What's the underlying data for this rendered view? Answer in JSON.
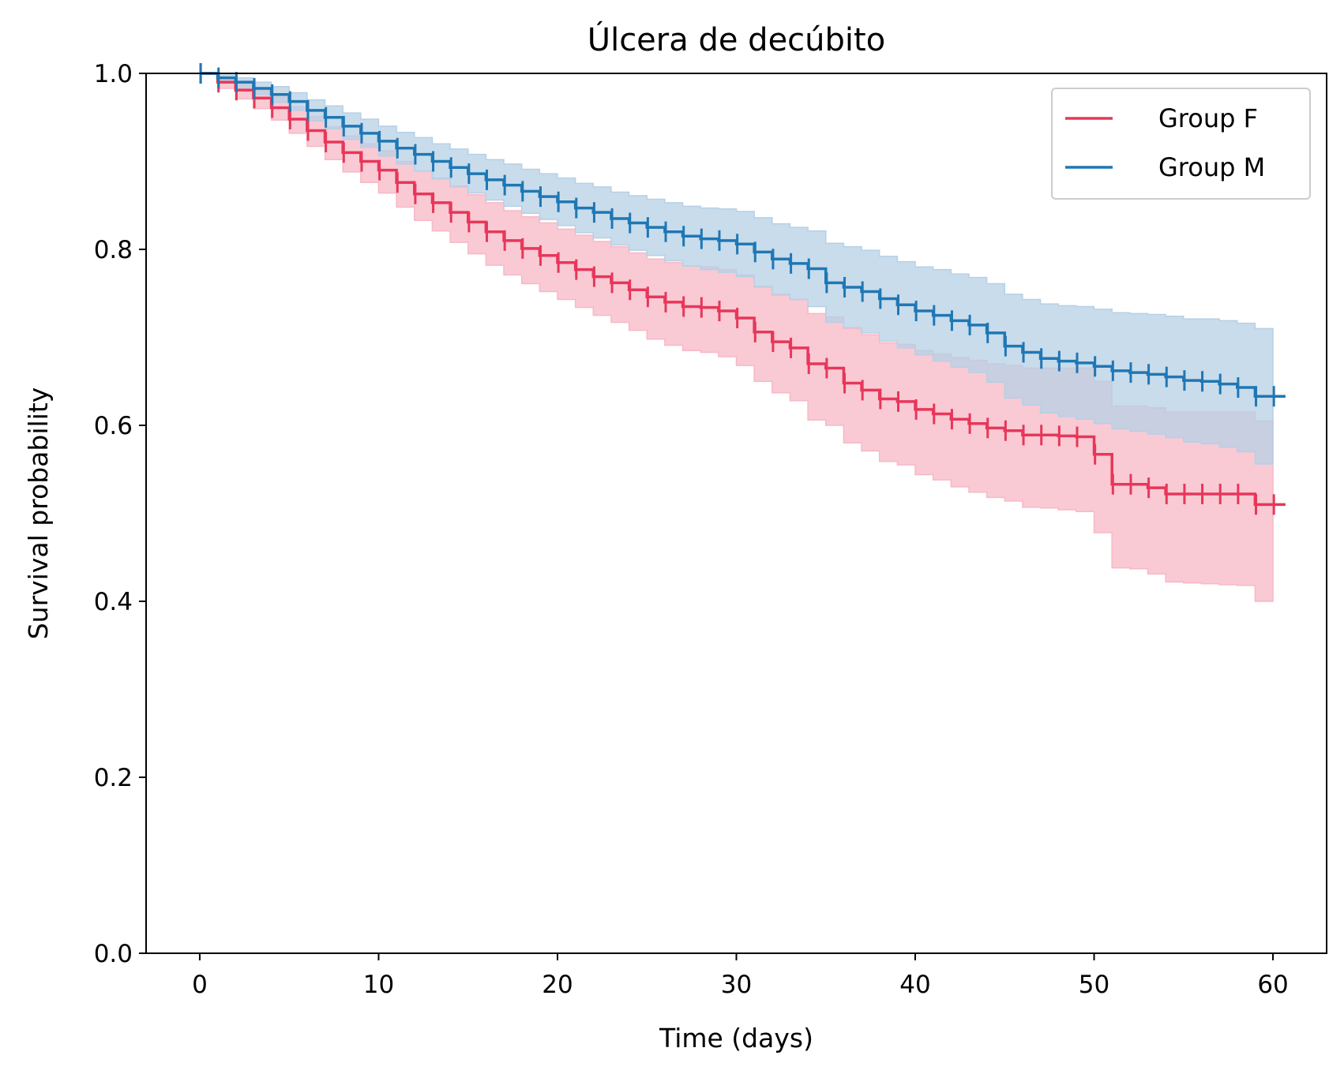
{
  "chart_data": {
    "type": "line",
    "subtype": "kaplan-meier-step",
    "title": "Úlcera de decúbito",
    "xlabel": "Time (days)",
    "ylabel": "Survival probability",
    "xlim": [
      -3,
      63
    ],
    "ylim": [
      0,
      1
    ],
    "xticks": [
      0,
      10,
      20,
      30,
      40,
      50,
      60
    ],
    "yticks": [
      0.0,
      0.2,
      0.4,
      0.6,
      0.8,
      1.0
    ],
    "xtick_labels": [
      "0",
      "10",
      "20",
      "30",
      "40",
      "50",
      "60"
    ],
    "ytick_labels": [
      "0.0",
      "0.2",
      "0.4",
      "0.6",
      "0.8",
      "1.0"
    ],
    "grid": false,
    "legend_position": "upper right",
    "series": [
      {
        "name": "Group F",
        "color": "#e8365a",
        "ci_fill": "#f7b8c6",
        "x": [
          0,
          1,
          2,
          3,
          4,
          5,
          6,
          7,
          8,
          9,
          10,
          11,
          12,
          13,
          14,
          15,
          16,
          17,
          18,
          19,
          20,
          21,
          22,
          23,
          24,
          25,
          26,
          27,
          28,
          29,
          30,
          31,
          32,
          33,
          34,
          35,
          36,
          37,
          38,
          39,
          40,
          41,
          42,
          43,
          44,
          45,
          46,
          47,
          48,
          49,
          50,
          51,
          52,
          53,
          54,
          55,
          56,
          57,
          58,
          59,
          60
        ],
        "y": [
          1.0,
          0.99,
          0.981,
          0.972,
          0.961,
          0.948,
          0.935,
          0.922,
          0.91,
          0.9,
          0.89,
          0.876,
          0.863,
          0.853,
          0.842,
          0.831,
          0.82,
          0.81,
          0.801,
          0.793,
          0.785,
          0.777,
          0.769,
          0.762,
          0.754,
          0.746,
          0.74,
          0.735,
          0.734,
          0.73,
          0.722,
          0.706,
          0.695,
          0.688,
          0.67,
          0.665,
          0.648,
          0.64,
          0.63,
          0.627,
          0.618,
          0.613,
          0.607,
          0.602,
          0.597,
          0.594,
          0.589,
          0.589,
          0.588,
          0.587,
          0.567,
          0.533,
          0.533,
          0.529,
          0.522,
          0.522,
          0.522,
          0.522,
          0.522,
          0.51,
          0.51
        ],
        "ci_lower": [
          1.0,
          0.983,
          0.971,
          0.96,
          0.947,
          0.932,
          0.917,
          0.902,
          0.888,
          0.876,
          0.864,
          0.848,
          0.833,
          0.821,
          0.808,
          0.795,
          0.782,
          0.771,
          0.761,
          0.752,
          0.743,
          0.734,
          0.725,
          0.717,
          0.708,
          0.698,
          0.691,
          0.685,
          0.683,
          0.678,
          0.668,
          0.65,
          0.637,
          0.628,
          0.606,
          0.6,
          0.58,
          0.571,
          0.559,
          0.555,
          0.544,
          0.538,
          0.53,
          0.524,
          0.518,
          0.514,
          0.507,
          0.506,
          0.504,
          0.502,
          0.478,
          0.438,
          0.437,
          0.431,
          0.422,
          0.421,
          0.42,
          0.419,
          0.418,
          0.4,
          0.4
        ],
        "ci_upper": [
          1.0,
          0.995,
          0.988,
          0.981,
          0.973,
          0.962,
          0.951,
          0.939,
          0.929,
          0.92,
          0.912,
          0.9,
          0.889,
          0.881,
          0.871,
          0.862,
          0.853,
          0.844,
          0.837,
          0.83,
          0.823,
          0.816,
          0.809,
          0.803,
          0.796,
          0.789,
          0.785,
          0.781,
          0.78,
          0.777,
          0.771,
          0.757,
          0.748,
          0.743,
          0.727,
          0.723,
          0.71,
          0.703,
          0.694,
          0.692,
          0.685,
          0.681,
          0.677,
          0.674,
          0.67,
          0.668,
          0.665,
          0.665,
          0.665,
          0.665,
          0.65,
          0.622,
          0.622,
          0.62,
          0.615,
          0.615,
          0.615,
          0.615,
          0.615,
          0.605,
          0.605
        ]
      },
      {
        "name": "Group M",
        "color": "#1f77b4",
        "ci_fill": "#b6d0e6",
        "x": [
          0,
          1,
          2,
          3,
          4,
          5,
          6,
          7,
          8,
          9,
          10,
          11,
          12,
          13,
          14,
          15,
          16,
          17,
          18,
          19,
          20,
          21,
          22,
          23,
          24,
          25,
          26,
          27,
          28,
          29,
          30,
          31,
          32,
          33,
          34,
          35,
          36,
          37,
          38,
          39,
          40,
          41,
          42,
          43,
          44,
          45,
          46,
          47,
          48,
          49,
          50,
          51,
          52,
          53,
          54,
          55,
          56,
          57,
          58,
          59,
          60
        ],
        "y": [
          1.0,
          0.995,
          0.99,
          0.983,
          0.976,
          0.968,
          0.958,
          0.95,
          0.94,
          0.932,
          0.923,
          0.915,
          0.908,
          0.9,
          0.893,
          0.886,
          0.879,
          0.873,
          0.866,
          0.86,
          0.854,
          0.847,
          0.842,
          0.835,
          0.83,
          0.825,
          0.82,
          0.815,
          0.812,
          0.81,
          0.806,
          0.797,
          0.789,
          0.784,
          0.778,
          0.762,
          0.757,
          0.752,
          0.744,
          0.737,
          0.73,
          0.725,
          0.719,
          0.714,
          0.705,
          0.69,
          0.683,
          0.676,
          0.673,
          0.671,
          0.667,
          0.662,
          0.66,
          0.658,
          0.655,
          0.651,
          0.65,
          0.647,
          0.643,
          0.633,
          0.633
        ],
        "ci_lower": [
          1.0,
          0.991,
          0.984,
          0.976,
          0.967,
          0.958,
          0.946,
          0.937,
          0.925,
          0.916,
          0.906,
          0.897,
          0.889,
          0.88,
          0.872,
          0.864,
          0.856,
          0.849,
          0.841,
          0.834,
          0.827,
          0.819,
          0.813,
          0.805,
          0.799,
          0.793,
          0.787,
          0.781,
          0.777,
          0.774,
          0.769,
          0.758,
          0.749,
          0.743,
          0.735,
          0.717,
          0.711,
          0.705,
          0.696,
          0.688,
          0.68,
          0.673,
          0.666,
          0.66,
          0.649,
          0.631,
          0.623,
          0.614,
          0.61,
          0.607,
          0.602,
          0.596,
          0.593,
          0.59,
          0.586,
          0.581,
          0.579,
          0.575,
          0.57,
          0.556,
          0.556
        ],
        "ci_upper": [
          1.0,
          0.998,
          0.995,
          0.99,
          0.985,
          0.978,
          0.97,
          0.963,
          0.955,
          0.948,
          0.94,
          0.933,
          0.927,
          0.92,
          0.914,
          0.908,
          0.902,
          0.897,
          0.891,
          0.886,
          0.881,
          0.875,
          0.871,
          0.865,
          0.861,
          0.857,
          0.853,
          0.849,
          0.847,
          0.846,
          0.843,
          0.836,
          0.829,
          0.825,
          0.821,
          0.807,
          0.803,
          0.799,
          0.792,
          0.786,
          0.78,
          0.777,
          0.772,
          0.768,
          0.761,
          0.749,
          0.743,
          0.738,
          0.736,
          0.735,
          0.732,
          0.728,
          0.727,
          0.726,
          0.724,
          0.721,
          0.721,
          0.719,
          0.716,
          0.71,
          0.71
        ]
      }
    ]
  }
}
